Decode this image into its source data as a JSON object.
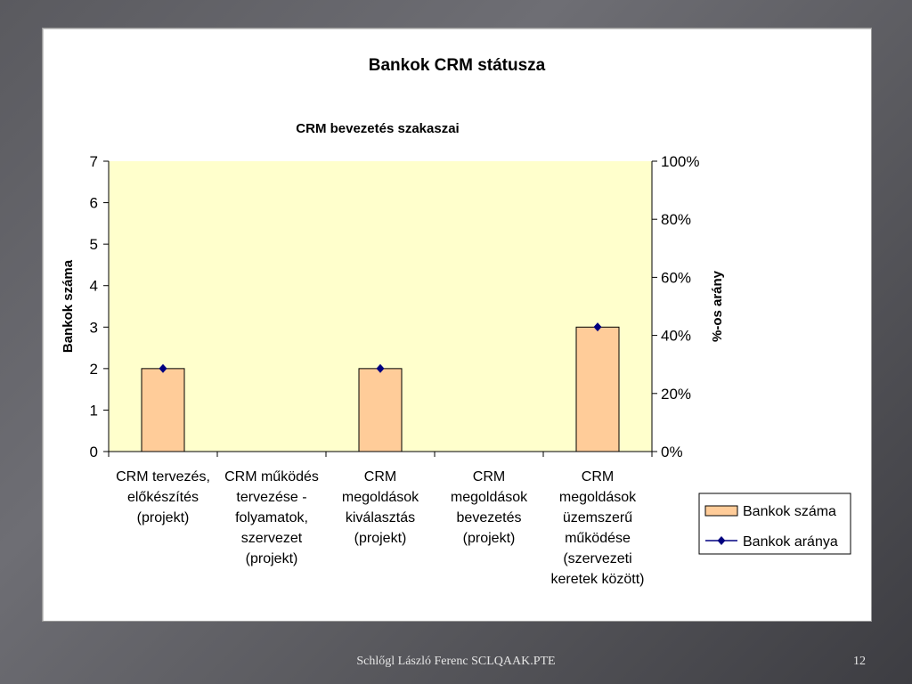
{
  "slide": {
    "footer": "Schlőgl László Ferenc SCLQAAK.PTE",
    "page_number": "12"
  },
  "chart_data": {
    "type": "bar",
    "title": "Bankok CRM státusza",
    "subtitle": "CRM bevezetés szakaszai",
    "categories": [
      [
        "CRM tervezés,",
        "előkészítés",
        "(projekt)"
      ],
      [
        "CRM működés",
        "tervezése -",
        "folyamatok,",
        "szervezet",
        "(projekt)"
      ],
      [
        "CRM",
        "megoldások",
        "kiválasztás",
        "(projekt)"
      ],
      [
        "CRM",
        "megoldások",
        "bevezetés",
        "(projekt)"
      ],
      [
        "CRM",
        "megoldások",
        "üzemszerű",
        "működése",
        "(szervezeti",
        "keretek között)"
      ]
    ],
    "series": [
      {
        "name": "Bankok száma",
        "type": "bar",
        "axis": "left",
        "values": [
          2,
          0,
          2,
          0,
          3
        ],
        "color": "#ffcc99"
      },
      {
        "name": "Bankok aránya",
        "type": "line",
        "axis": "right",
        "values": [
          28.6,
          null,
          28.6,
          null,
          42.9
        ],
        "color": "#000080"
      }
    ],
    "ylabel": "Bankok száma",
    "y2label": "%-os arány",
    "ylim": [
      0,
      7
    ],
    "y_ticks": [
      "0",
      "1",
      "2",
      "3",
      "4",
      "5",
      "6",
      "7"
    ],
    "y2lim": [
      0,
      100
    ],
    "y2_ticks": [
      "0%",
      "20%",
      "40%",
      "60%",
      "80%",
      "100%"
    ],
    "plot_background": "#ffffcc",
    "grid": false,
    "legend_position": "right"
  }
}
